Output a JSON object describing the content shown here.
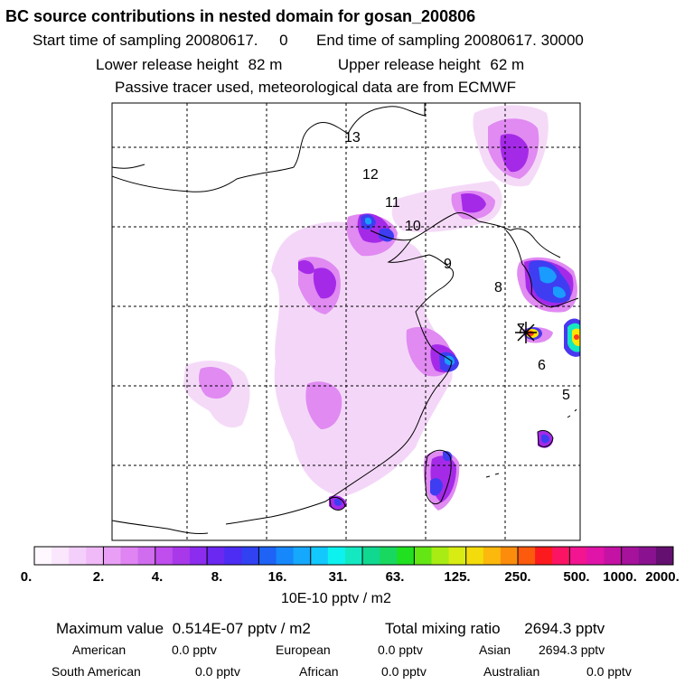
{
  "header": {
    "title": "BC  source contributions in nested domain for gosan_200806",
    "start_label": "Start time of sampling",
    "start_value": "20080617.     0",
    "end_label": "End time of sampling",
    "end_value": "20080617. 30000",
    "lower_label": "Lower release height",
    "lower_value": "82 m",
    "upper_label": "Upper release height",
    "upper_value": "62 m",
    "tracer_note": "Passive tracer used, meteorological data are from ECMWF"
  },
  "map": {
    "day_labels": [
      "13",
      "12",
      "11",
      "10",
      "9",
      "8",
      "7",
      "6",
      "5"
    ],
    "colors": {
      "plume_light": "#f1c6f5",
      "plume_mid": "#dc6ff0",
      "plume_strong": "#a81ee8",
      "plume_blue": "#4a38f0",
      "plume_core": "#1a9cff",
      "hot_yellow": "#ffe600",
      "hot_red": "#ff3a1e"
    }
  },
  "colorbar": {
    "colors": [
      "#fff8ff",
      "#fae6fd",
      "#f5cffb",
      "#f0b9f8",
      "#e99ff5",
      "#df84f2",
      "#d06cee",
      "#c04ded",
      "#a938ea",
      "#8c2cee",
      "#6a28f0",
      "#4d2cf3",
      "#3042f2",
      "#1e62f6",
      "#1688fb",
      "#16a8fc",
      "#12c8fc",
      "#0ef2ef",
      "#14e8c0",
      "#10d890",
      "#18d860",
      "#20e020",
      "#64e614",
      "#a8ec14",
      "#d8ec14",
      "#f4dc0c",
      "#fcb80c",
      "#fc8c0c",
      "#fc5a0c",
      "#fc1a1e",
      "#fc1464",
      "#f21490",
      "#e014a8",
      "#c412a4",
      "#a6129c",
      "#8a1290",
      "#641070"
    ],
    "labels": [
      "0.",
      "2.",
      "4.",
      "8.",
      "16.",
      "31.",
      "63.",
      "125.",
      "250.",
      "500.",
      "1000.",
      "2000."
    ],
    "unit": "10E-10 pptv / m2"
  },
  "stats": {
    "max_label": "Maximum value",
    "max_value": "0.514E-07 pptv / m2",
    "total_label": "Total mixing ratio",
    "total_value": "2694.3 pptv",
    "american_label": "American",
    "american_value": "0.0 pptv",
    "european_label": "European",
    "european_value": "0.0 pptv",
    "asian_label": "Asian",
    "asian_value": "2694.3 pptv",
    "south_american_label": "South American",
    "south_american_value": "0.0 pptv",
    "african_label": "African",
    "african_value": "0.0 pptv",
    "australian_label": "Australian",
    "australian_value": "0.0 pptv"
  }
}
